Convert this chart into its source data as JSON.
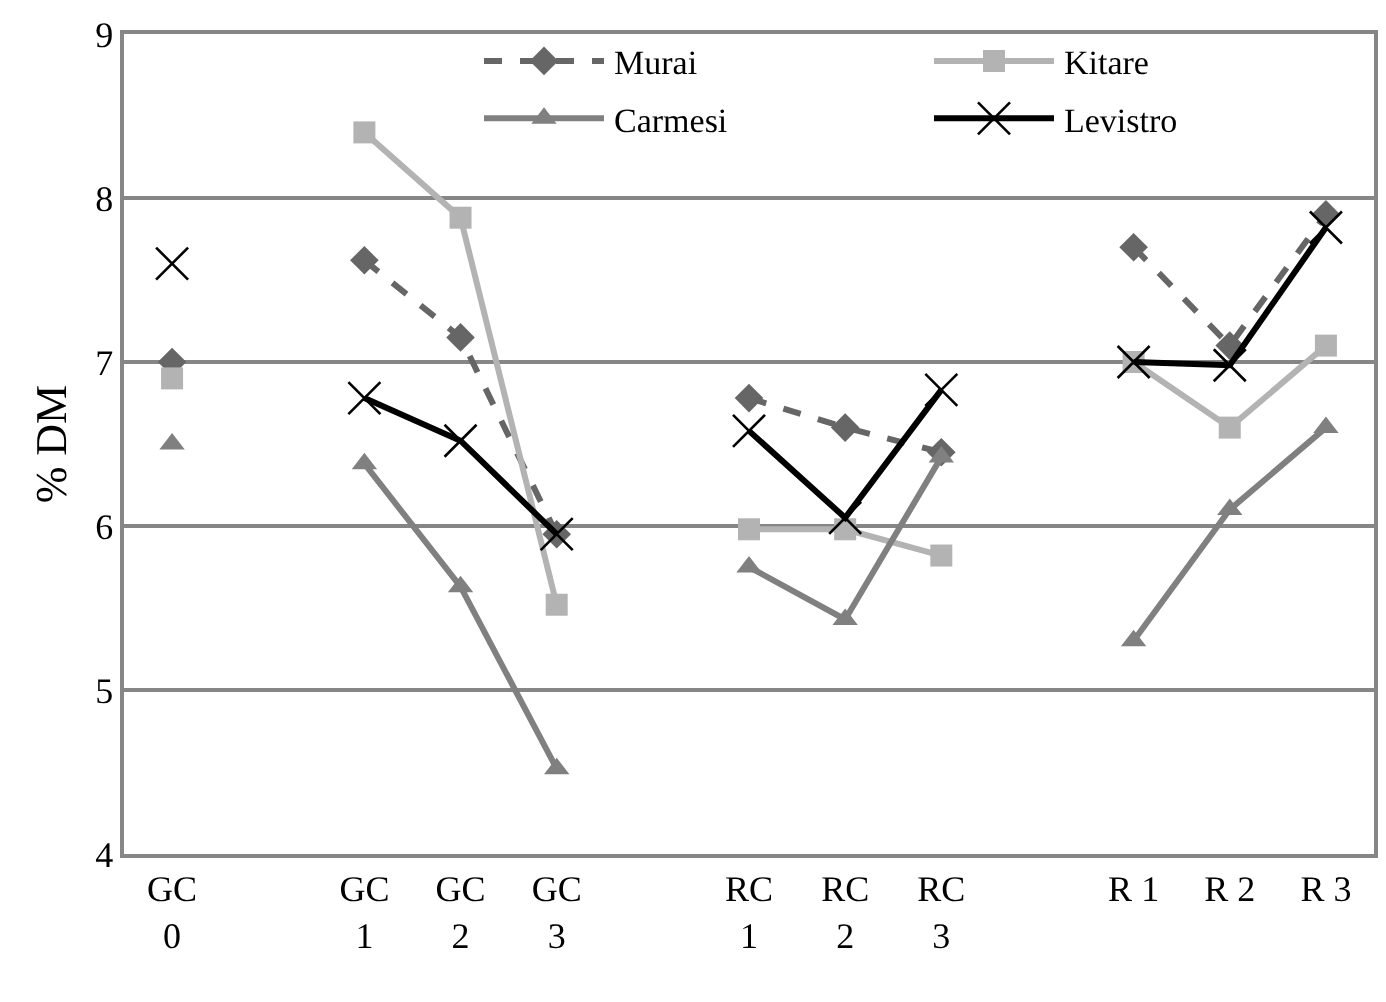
{
  "chart_data": {
    "type": "line",
    "ylabel": "% DM",
    "categories": [
      "GC 0",
      null,
      "GC 1",
      "GC 2",
      "GC 3",
      null,
      "RC 1",
      "RC 2",
      "RC 3",
      null,
      "R 1",
      "R 2",
      "R 3"
    ],
    "series": [
      {
        "name": "Murai",
        "color": "#666666",
        "marker": "diamond",
        "line_style": "dashed",
        "values": [
          7.0,
          null,
          7.62,
          7.15,
          5.95,
          null,
          6.78,
          6.6,
          6.45,
          null,
          7.7,
          7.1,
          7.9
        ]
      },
      {
        "name": "Kitare",
        "color": "#b3b3b3",
        "marker": "square",
        "line_style": "solid",
        "values": [
          6.9,
          null,
          8.4,
          7.88,
          5.52,
          null,
          5.98,
          5.98,
          5.82,
          null,
          7.0,
          6.6,
          7.1
        ]
      },
      {
        "name": "Carmesi",
        "color": "#808080",
        "marker": "triangle",
        "line_style": "solid",
        "values": [
          6.5,
          null,
          6.38,
          5.63,
          4.52,
          null,
          5.75,
          5.43,
          6.42,
          null,
          5.3,
          6.1,
          6.6
        ]
      },
      {
        "name": "Levistro",
        "color": "#000000",
        "marker": "cross",
        "line_style": "solid",
        "values": [
          7.6,
          null,
          6.78,
          6.52,
          5.95,
          null,
          6.58,
          6.05,
          6.83,
          null,
          7.0,
          6.98,
          7.82
        ]
      }
    ],
    "ylim": [
      4,
      9
    ],
    "yticks": [
      4,
      5,
      6,
      7,
      8,
      9
    ],
    "grid": "y",
    "legend": "top right"
  }
}
